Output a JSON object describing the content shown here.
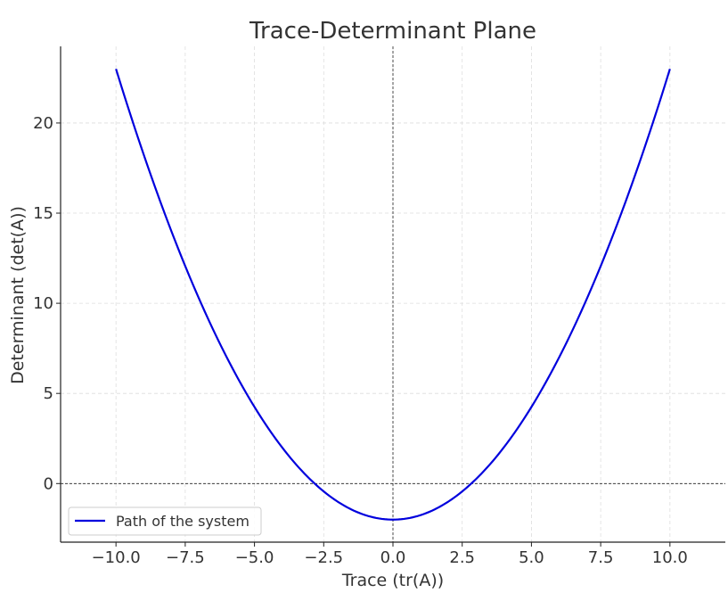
{
  "chart_data": {
    "type": "line",
    "title": "Trace-Determinant Plane",
    "xlabel": "Trace (tr(A))",
    "ylabel": "Determinant (det(A))",
    "xlim": [
      -12,
      12
    ],
    "ylim": [
      -3.25,
      24.25
    ],
    "x_ticks": [
      -10.0,
      -7.5,
      -5.0,
      -2.5,
      0.0,
      2.5,
      5.0,
      7.5,
      10.0
    ],
    "x_tick_labels": [
      "−10.0",
      "−7.5",
      "−5.0",
      "−2.5",
      "0.0",
      "2.5",
      "5.0",
      "7.5",
      "10.0"
    ],
    "y_ticks": [
      0,
      5,
      10,
      15,
      20
    ],
    "y_tick_labels": [
      "0",
      "5",
      "10",
      "15",
      "20"
    ],
    "grid": true,
    "legend_position": "lower-left",
    "reference_lines": {
      "x": 0,
      "y": 0
    },
    "series": [
      {
        "name": "Path of the system",
        "color": "#0000dd",
        "x": [
          -10,
          -9,
          -8,
          -7,
          -6,
          -5,
          -4,
          -3,
          -2,
          -1,
          0,
          1,
          2,
          3,
          4,
          5,
          6,
          7,
          8,
          9,
          10
        ],
        "y": [
          23,
          18.25,
          14,
          10.25,
          7,
          4.25,
          2,
          0.25,
          -1,
          -1.75,
          -2,
          -1.75,
          -1,
          0.25,
          2,
          4.25,
          7,
          10.25,
          14,
          18.25,
          23
        ]
      }
    ]
  }
}
